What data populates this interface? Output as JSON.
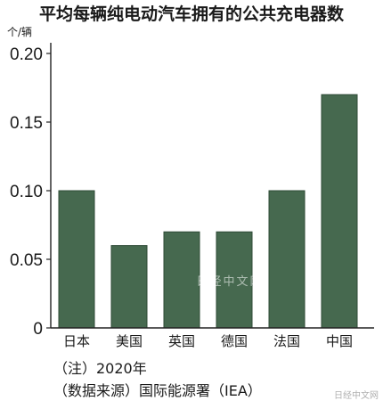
{
  "chart_data": {
    "type": "bar",
    "title": "平均每辆纯电动汽车拥有的公共充电器数",
    "ylabel": "个/辆",
    "xlabel": "",
    "categories": [
      "日本",
      "美国",
      "英国",
      "德国",
      "法国",
      "中国"
    ],
    "values": [
      0.1,
      0.06,
      0.07,
      0.07,
      0.1,
      0.17
    ],
    "yticks": [
      "0",
      "0.05",
      "0.10",
      "0.15",
      "0.20"
    ],
    "ylim": [
      0,
      0.2
    ],
    "grid": false,
    "bar_color": "#46694f",
    "notes": [
      "（注）2020年",
      "（数据来源）国际能源署（IEA）"
    ],
    "watermark": "日经中文网",
    "watermark_corner": "日经中文网"
  }
}
